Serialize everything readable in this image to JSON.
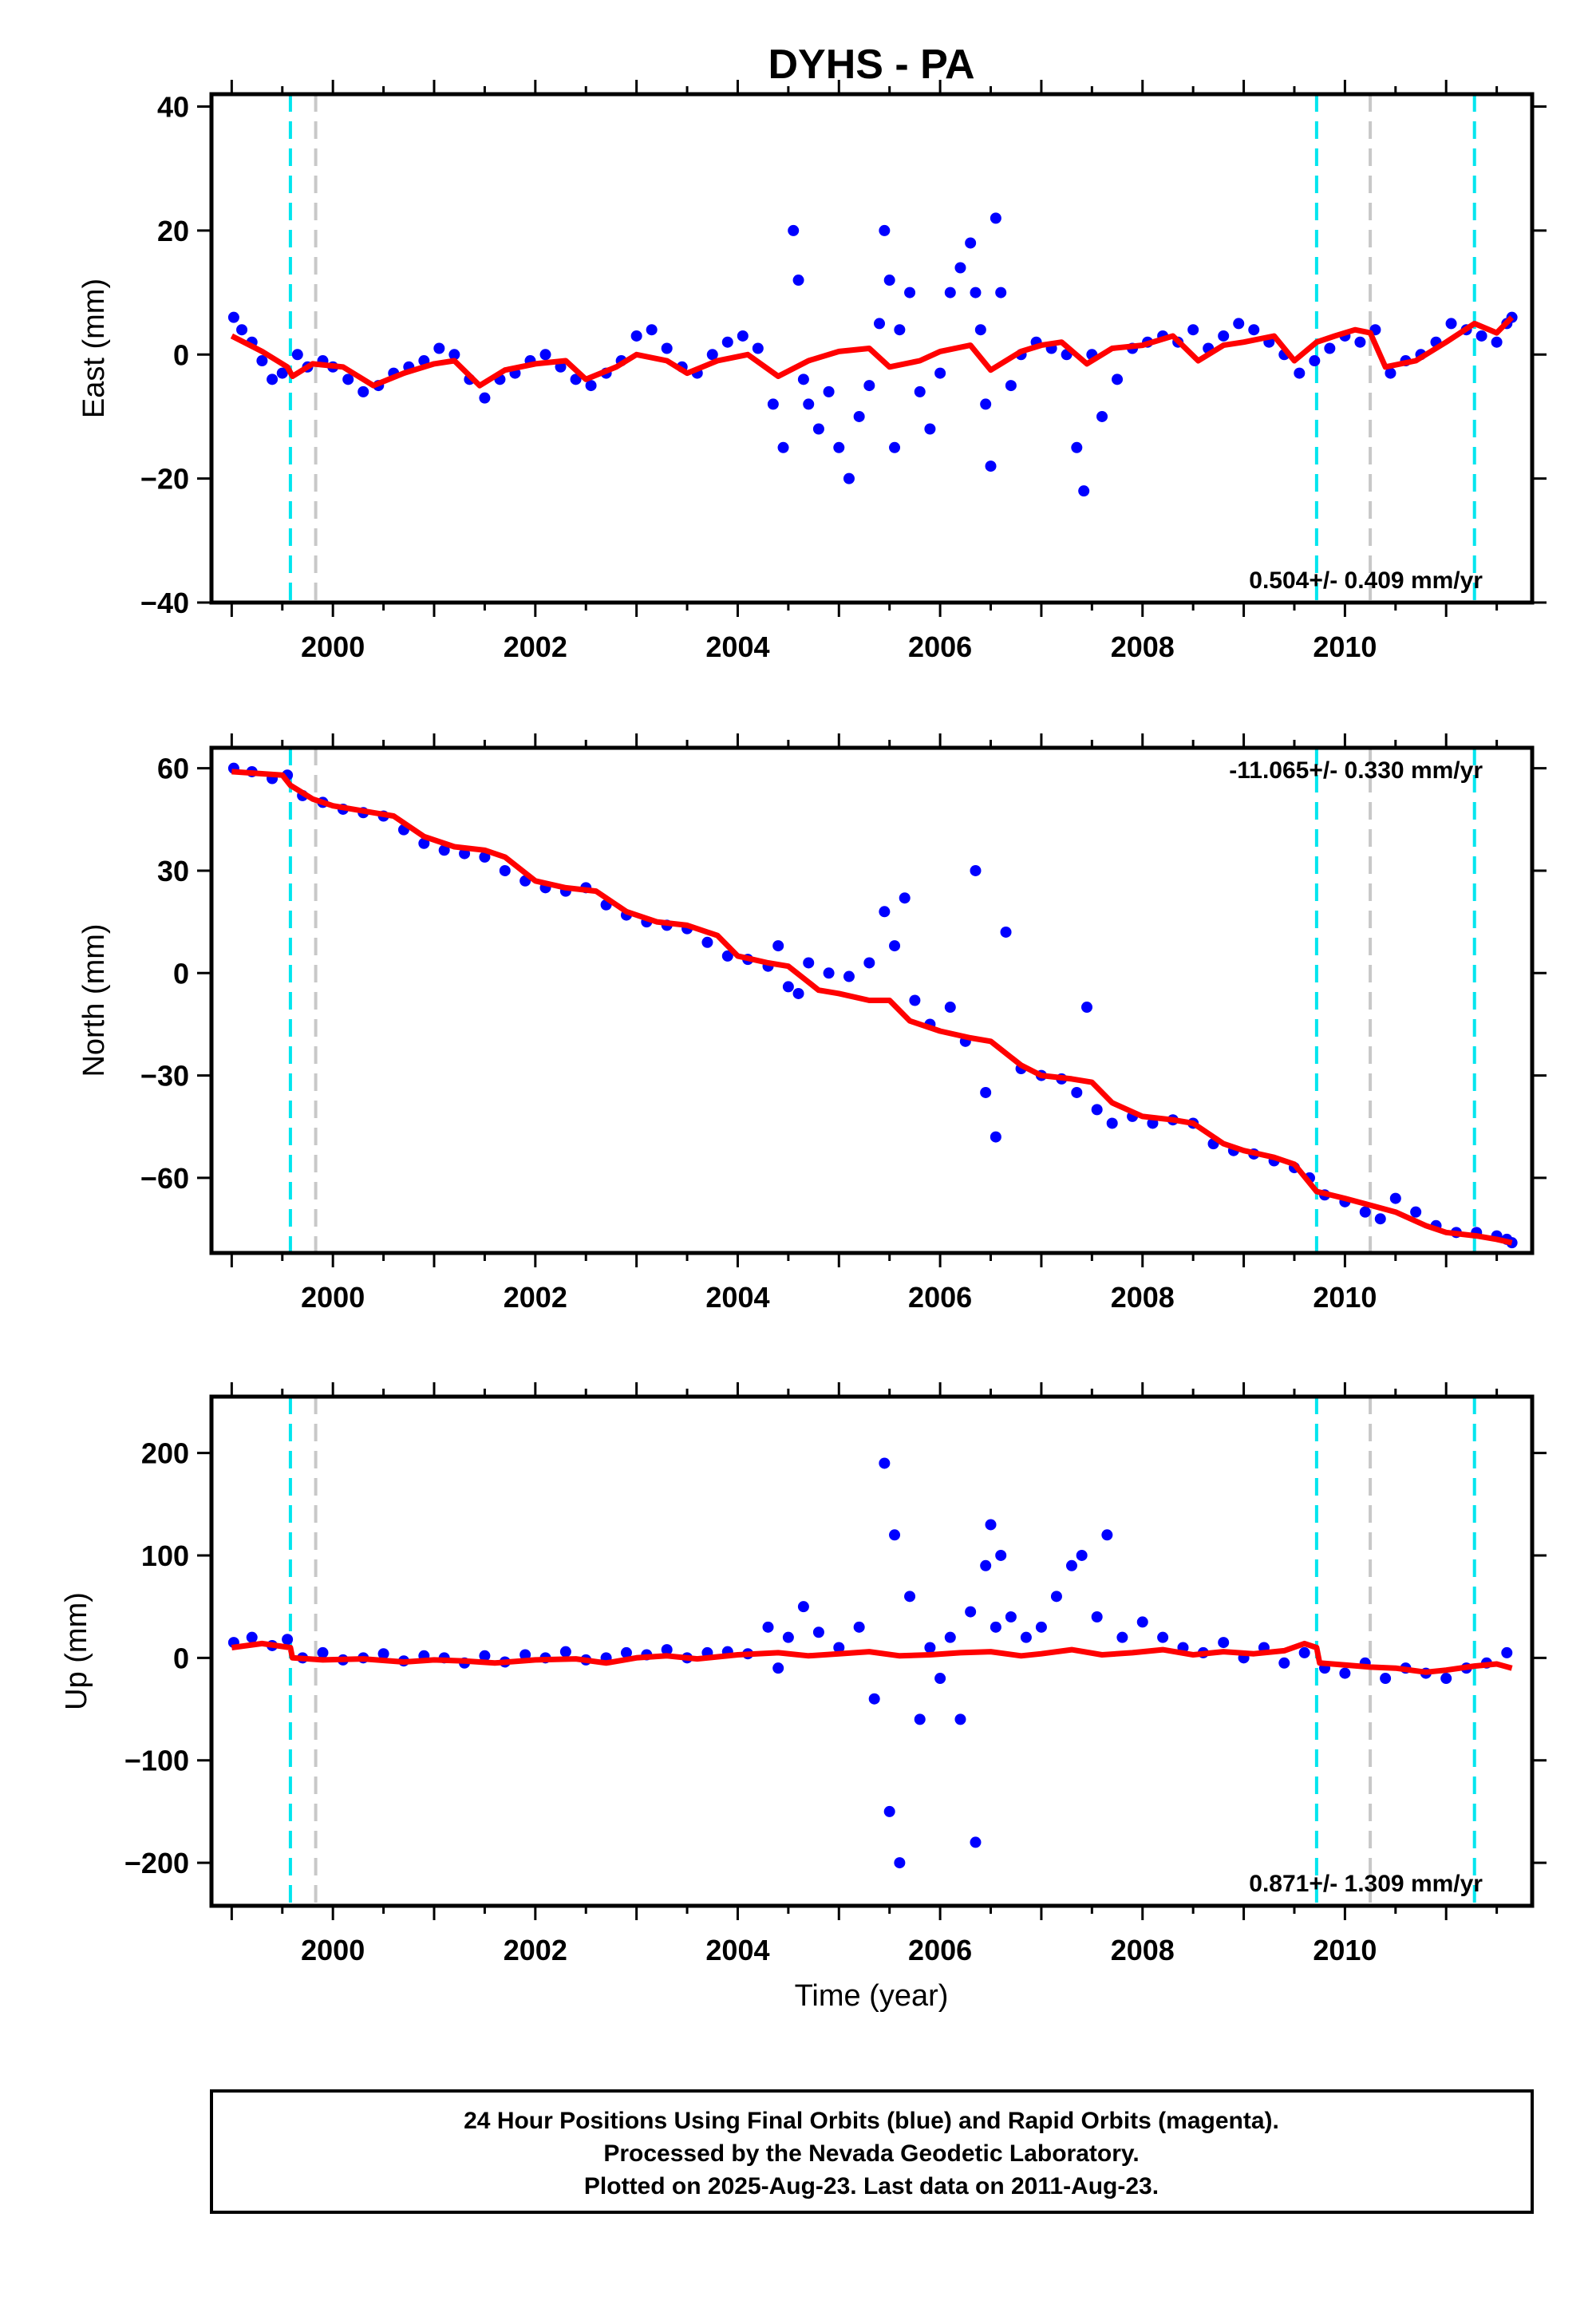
{
  "title": "DYHS - PA",
  "colors": {
    "final_orbits": "#0000ff",
    "model": "#ff0000",
    "equipment_change": "#00e5ee",
    "other_offset": "#c8c8c8",
    "frame": "#000000"
  },
  "x_axis": {
    "label": "Time (year)",
    "range": [
      1998.8,
      2011.85
    ],
    "ticks": [
      2000,
      2002,
      2004,
      2006,
      2008,
      2010
    ],
    "tick_labels": [
      "2000",
      "2002",
      "2004",
      "2006",
      "2008",
      "2010"
    ]
  },
  "chart_data": [
    {
      "type": "scatter",
      "id": "east",
      "ylabel": "East (mm)",
      "ylim": [
        -40,
        42
      ],
      "yticks": [
        40,
        20,
        0,
        -20,
        -40
      ],
      "ytick_labels": [
        "40",
        "20",
        "0",
        "−20",
        "−40"
      ],
      "rate_text": "0.504+/- 0.409 mm/yr",
      "rate_position": "bottom-right",
      "offsets_cyan": [
        1999.58,
        2009.72,
        2011.28
      ],
      "offsets_gray": [
        1999.83,
        2010.25
      ],
      "model_line": {
        "name": "",
        "x": [
          1999.0,
          1999.3,
          1999.55,
          1999.6,
          1999.8,
          2000.1,
          2000.4,
          2000.7,
          2001.0,
          2001.2,
          2001.45,
          2001.7,
          2002.0,
          2002.3,
          2002.5,
          2002.8,
          2003.0,
          2003.3,
          2003.5,
          2003.8,
          2004.1,
          2004.4,
          2004.7,
          2005.0,
          2005.3,
          2005.5,
          2005.8,
          2006.0,
          2006.3,
          2006.5,
          2006.8,
          2007.0,
          2007.2,
          2007.45,
          2007.7,
          2008.0,
          2008.3,
          2008.55,
          2008.8,
          2009.0,
          2009.3,
          2009.5,
          2009.72,
          2009.9,
          2010.1,
          2010.25,
          2010.4,
          2010.7,
          2011.0,
          2011.28,
          2011.5,
          2011.65
        ],
        "y": [
          3,
          0.5,
          -2,
          -3.5,
          -1.5,
          -2,
          -5,
          -3,
          -1.5,
          -1,
          -5,
          -2.5,
          -1.5,
          -1,
          -4,
          -2,
          0,
          -1,
          -3,
          -1,
          0,
          -3.5,
          -1,
          0.5,
          1,
          -2,
          -1,
          0.5,
          1.5,
          -2.5,
          0.5,
          1.5,
          2,
          -1.5,
          1,
          1.5,
          3,
          -1,
          1.5,
          2,
          3,
          -1,
          2,
          3,
          4,
          3.5,
          -2,
          -1,
          2,
          5,
          3.5,
          6
        ]
      },
      "series": [
        {
          "name": "",
          "x": [
            1999.02,
            1999.1,
            1999.2,
            1999.3,
            1999.4,
            1999.5,
            1999.65,
            1999.75,
            1999.9,
            2000.0,
            2000.15,
            2000.3,
            2000.45,
            2000.6,
            2000.75,
            2000.9,
            2001.05,
            2001.2,
            2001.35,
            2001.5,
            2001.65,
            2001.8,
            2001.95,
            2002.1,
            2002.25,
            2002.4,
            2002.55,
            2002.7,
            2002.85,
            2003.0,
            2003.15,
            2003.3,
            2003.45,
            2003.6,
            2003.75,
            2003.9,
            2004.05,
            2004.2,
            2004.35,
            2004.45,
            2004.55,
            2004.6,
            2004.65,
            2004.7,
            2004.8,
            2004.9,
            2005.0,
            2005.1,
            2005.2,
            2005.3,
            2005.4,
            2005.45,
            2005.5,
            2005.55,
            2005.6,
            2005.7,
            2005.8,
            2005.9,
            2006.0,
            2006.1,
            2006.2,
            2006.3,
            2006.35,
            2006.4,
            2006.45,
            2006.5,
            2006.55,
            2006.6,
            2006.7,
            2006.8,
            2006.95,
            2007.1,
            2007.25,
            2007.35,
            2007.42,
            2007.5,
            2007.6,
            2007.75,
            2007.9,
            2008.05,
            2008.2,
            2008.35,
            2008.5,
            2008.65,
            2008.8,
            2008.95,
            2009.1,
            2009.25,
            2009.4,
            2009.55,
            2009.7,
            2009.85,
            2010.0,
            2010.15,
            2010.3,
            2010.45,
            2010.6,
            2010.75,
            2010.9,
            2011.05,
            2011.2,
            2011.35,
            2011.5,
            2011.6,
            2011.65
          ],
          "y": [
            6,
            4,
            2,
            -1,
            -4,
            -3,
            0,
            -2,
            -1,
            -2,
            -4,
            -6,
            -5,
            -3,
            -2,
            -1,
            1,
            0,
            -4,
            -7,
            -4,
            -3,
            -1,
            0,
            -2,
            -4,
            -5,
            -3,
            -1,
            3,
            4,
            1,
            -2,
            -3,
            0,
            2,
            3,
            1,
            -8,
            -15,
            20,
            12,
            -4,
            -8,
            -12,
            -6,
            -15,
            -20,
            -10,
            -5,
            5,
            20,
            12,
            -15,
            4,
            10,
            -6,
            -12,
            -3,
            10,
            14,
            18,
            10,
            4,
            -8,
            -18,
            22,
            10,
            -5,
            0,
            2,
            1,
            0,
            -15,
            -22,
            0,
            -10,
            -4,
            1,
            2,
            3,
            2,
            4,
            1,
            3,
            5,
            4,
            2,
            0,
            -3,
            -1,
            1,
            3,
            2,
            4,
            -3,
            -1,
            0,
            2,
            5,
            4,
            3,
            2,
            5,
            6
          ]
        }
      ]
    },
    {
      "type": "scatter",
      "id": "north",
      "ylabel": "North (mm)",
      "ylim": [
        -82,
        66
      ],
      "yticks": [
        60,
        30,
        0,
        -30,
        -60
      ],
      "ytick_labels": [
        "60",
        "30",
        "0",
        "−30",
        "−60"
      ],
      "rate_text": "-11.065+/- 0.330 mm/yr",
      "rate_position": "top-right",
      "offsets_cyan": [
        1999.58,
        2009.72,
        2011.28
      ],
      "offsets_gray": [
        1999.83,
        2010.25
      ],
      "model_line": {
        "name": "",
        "x": [
          1999.0,
          1999.5,
          1999.58,
          1999.8,
          2000.0,
          2000.4,
          2000.6,
          2000.9,
          2001.2,
          2001.5,
          2001.7,
          2002.0,
          2002.3,
          2002.6,
          2002.9,
          2003.2,
          2003.5,
          2003.8,
          2004.0,
          2004.3,
          2004.5,
          2004.8,
          2005.0,
          2005.3,
          2005.5,
          2005.7,
          2006.0,
          2006.3,
          2006.5,
          2006.8,
          2007.0,
          2007.3,
          2007.5,
          2007.7,
          2008.0,
          2008.3,
          2008.5,
          2008.8,
          2009.0,
          2009.3,
          2009.5,
          2009.72,
          2010.0,
          2010.25,
          2010.5,
          2010.8,
          2011.0,
          2011.3,
          2011.5,
          2011.65
        ],
        "y": [
          59,
          58,
          55,
          51,
          49,
          47,
          46,
          40,
          37,
          36,
          34,
          27,
          25,
          24,
          18,
          15,
          14,
          11,
          5,
          3,
          2,
          -5,
          -6,
          -8,
          -8,
          -14,
          -17,
          -19,
          -20,
          -27,
          -30,
          -31,
          -32,
          -38,
          -42,
          -43,
          -44,
          -50,
          -52,
          -54,
          -56,
          -64,
          -66,
          -68,
          -70,
          -74,
          -76,
          -77,
          -78,
          -79
        ]
      },
      "series": [
        {
          "name": "",
          "x": [
            1999.02,
            1999.2,
            1999.4,
            1999.55,
            1999.7,
            1999.9,
            2000.1,
            2000.3,
            2000.5,
            2000.7,
            2000.9,
            2001.1,
            2001.3,
            2001.5,
            2001.7,
            2001.9,
            2002.1,
            2002.3,
            2002.5,
            2002.7,
            2002.9,
            2003.1,
            2003.3,
            2003.5,
            2003.7,
            2003.9,
            2004.1,
            2004.3,
            2004.4,
            2004.5,
            2004.6,
            2004.7,
            2004.9,
            2005.1,
            2005.3,
            2005.45,
            2005.55,
            2005.65,
            2005.75,
            2005.9,
            2006.1,
            2006.25,
            2006.35,
            2006.45,
            2006.55,
            2006.65,
            2006.8,
            2007.0,
            2007.2,
            2007.35,
            2007.45,
            2007.55,
            2007.7,
            2007.9,
            2008.1,
            2008.3,
            2008.5,
            2008.7,
            2008.9,
            2009.1,
            2009.3,
            2009.5,
            2009.65,
            2009.8,
            2010.0,
            2010.2,
            2010.35,
            2010.5,
            2010.7,
            2010.9,
            2011.1,
            2011.3,
            2011.5,
            2011.6,
            2011.65
          ],
          "y": [
            60,
            59,
            57,
            58,
            52,
            50,
            48,
            47,
            46,
            42,
            38,
            36,
            35,
            34,
            30,
            27,
            25,
            24,
            25,
            20,
            17,
            15,
            14,
            13,
            9,
            5,
            4,
            2,
            8,
            -4,
            -6,
            3,
            0,
            -1,
            3,
            18,
            8,
            22,
            -8,
            -15,
            -10,
            -20,
            30,
            -35,
            -48,
            12,
            -28,
            -30,
            -31,
            -35,
            -10,
            -40,
            -44,
            -42,
            -44,
            -43,
            -44,
            -50,
            -52,
            -53,
            -55,
            -57,
            -60,
            -65,
            -67,
            -70,
            -72,
            -66,
            -70,
            -74,
            -76,
            -76,
            -77,
            -78,
            -79
          ]
        }
      ]
    },
    {
      "type": "scatter",
      "id": "up",
      "ylabel": "Up (mm)",
      "xlabel": "Time (year)",
      "ylim": [
        -242,
        255
      ],
      "yticks": [
        200,
        100,
        0,
        -100,
        -200
      ],
      "ytick_labels": [
        "200",
        "100",
        "0",
        "−100",
        "−200"
      ],
      "rate_text": "0.871+/- 1.309 mm/yr",
      "rate_position": "bottom-right",
      "offsets_cyan": [
        1999.58,
        2009.72,
        2011.28
      ],
      "offsets_gray": [
        1999.83,
        2010.25
      ],
      "model_line": {
        "name": "",
        "x": [
          1999.0,
          1999.3,
          1999.58,
          1999.6,
          1999.9,
          2000.3,
          2000.7,
          2001.0,
          2001.3,
          2001.6,
          2002.0,
          2002.4,
          2002.7,
          2003.0,
          2003.3,
          2003.6,
          2004.0,
          2004.4,
          2004.7,
          2005.0,
          2005.3,
          2005.6,
          2005.9,
          2006.2,
          2006.5,
          2006.8,
          2007.0,
          2007.3,
          2007.6,
          2007.9,
          2008.2,
          2008.5,
          2008.8,
          2009.1,
          2009.4,
          2009.6,
          2009.72,
          2009.75,
          2010.0,
          2010.25,
          2010.5,
          2010.8,
          2011.0,
          2011.28,
          2011.5,
          2011.65
        ],
        "y": [
          10,
          14,
          10,
          0,
          -2,
          -1,
          -4,
          -2,
          -3,
          -5,
          -2,
          -1,
          -5,
          0,
          2,
          -1,
          3,
          5,
          2,
          4,
          6,
          2,
          3,
          5,
          6,
          2,
          4,
          8,
          3,
          5,
          8,
          3,
          6,
          4,
          7,
          14,
          10,
          -5,
          -7,
          -9,
          -10,
          -14,
          -12,
          -8,
          -6,
          -10
        ]
      },
      "series": [
        {
          "name": "",
          "x": [
            1999.02,
            1999.2,
            1999.4,
            1999.55,
            1999.7,
            1999.9,
            2000.1,
            2000.3,
            2000.5,
            2000.7,
            2000.9,
            2001.1,
            2001.3,
            2001.5,
            2001.7,
            2001.9,
            2002.1,
            2002.3,
            2002.5,
            2002.7,
            2002.9,
            2003.1,
            2003.3,
            2003.5,
            2003.7,
            2003.9,
            2004.1,
            2004.3,
            2004.4,
            2004.5,
            2004.65,
            2004.8,
            2005.0,
            2005.2,
            2005.35,
            2005.45,
            2005.5,
            2005.55,
            2005.6,
            2005.7,
            2005.8,
            2005.9,
            2006.0,
            2006.1,
            2006.2,
            2006.3,
            2006.35,
            2006.45,
            2006.5,
            2006.55,
            2006.6,
            2006.7,
            2006.85,
            2007.0,
            2007.15,
            2007.3,
            2007.4,
            2007.55,
            2007.65,
            2007.8,
            2008.0,
            2008.2,
            2008.4,
            2008.6,
            2008.8,
            2009.0,
            2009.2,
            2009.4,
            2009.6,
            2009.8,
            2010.0,
            2010.2,
            2010.4,
            2010.6,
            2010.8,
            2011.0,
            2011.2,
            2011.4,
            2011.6
          ],
          "y": [
            15,
            20,
            12,
            18,
            0,
            5,
            -2,
            0,
            4,
            -3,
            2,
            0,
            -5,
            2,
            -4,
            3,
            0,
            6,
            -2,
            0,
            5,
            3,
            8,
            0,
            5,
            6,
            4,
            30,
            -10,
            20,
            50,
            25,
            10,
            30,
            -40,
            190,
            -150,
            120,
            -200,
            60,
            -60,
            10,
            -20,
            20,
            -60,
            45,
            -180,
            90,
            130,
            30,
            100,
            40,
            20,
            30,
            60,
            90,
            100,
            40,
            120,
            20,
            35,
            20,
            10,
            5,
            15,
            0,
            10,
            -5,
            5,
            -10,
            -15,
            -5,
            -20,
            -10,
            -15,
            -20,
            -10,
            -5,
            5
          ]
        }
      ]
    }
  ],
  "footer": {
    "line1": "24 Hour Positions Using Final Orbits (blue) and Rapid Orbits (magenta).",
    "line2": "Processed by the Nevada Geodetic Laboratory.",
    "line3": "Plotted on 2025-Aug-23. Last data on 2011-Aug-23."
  }
}
